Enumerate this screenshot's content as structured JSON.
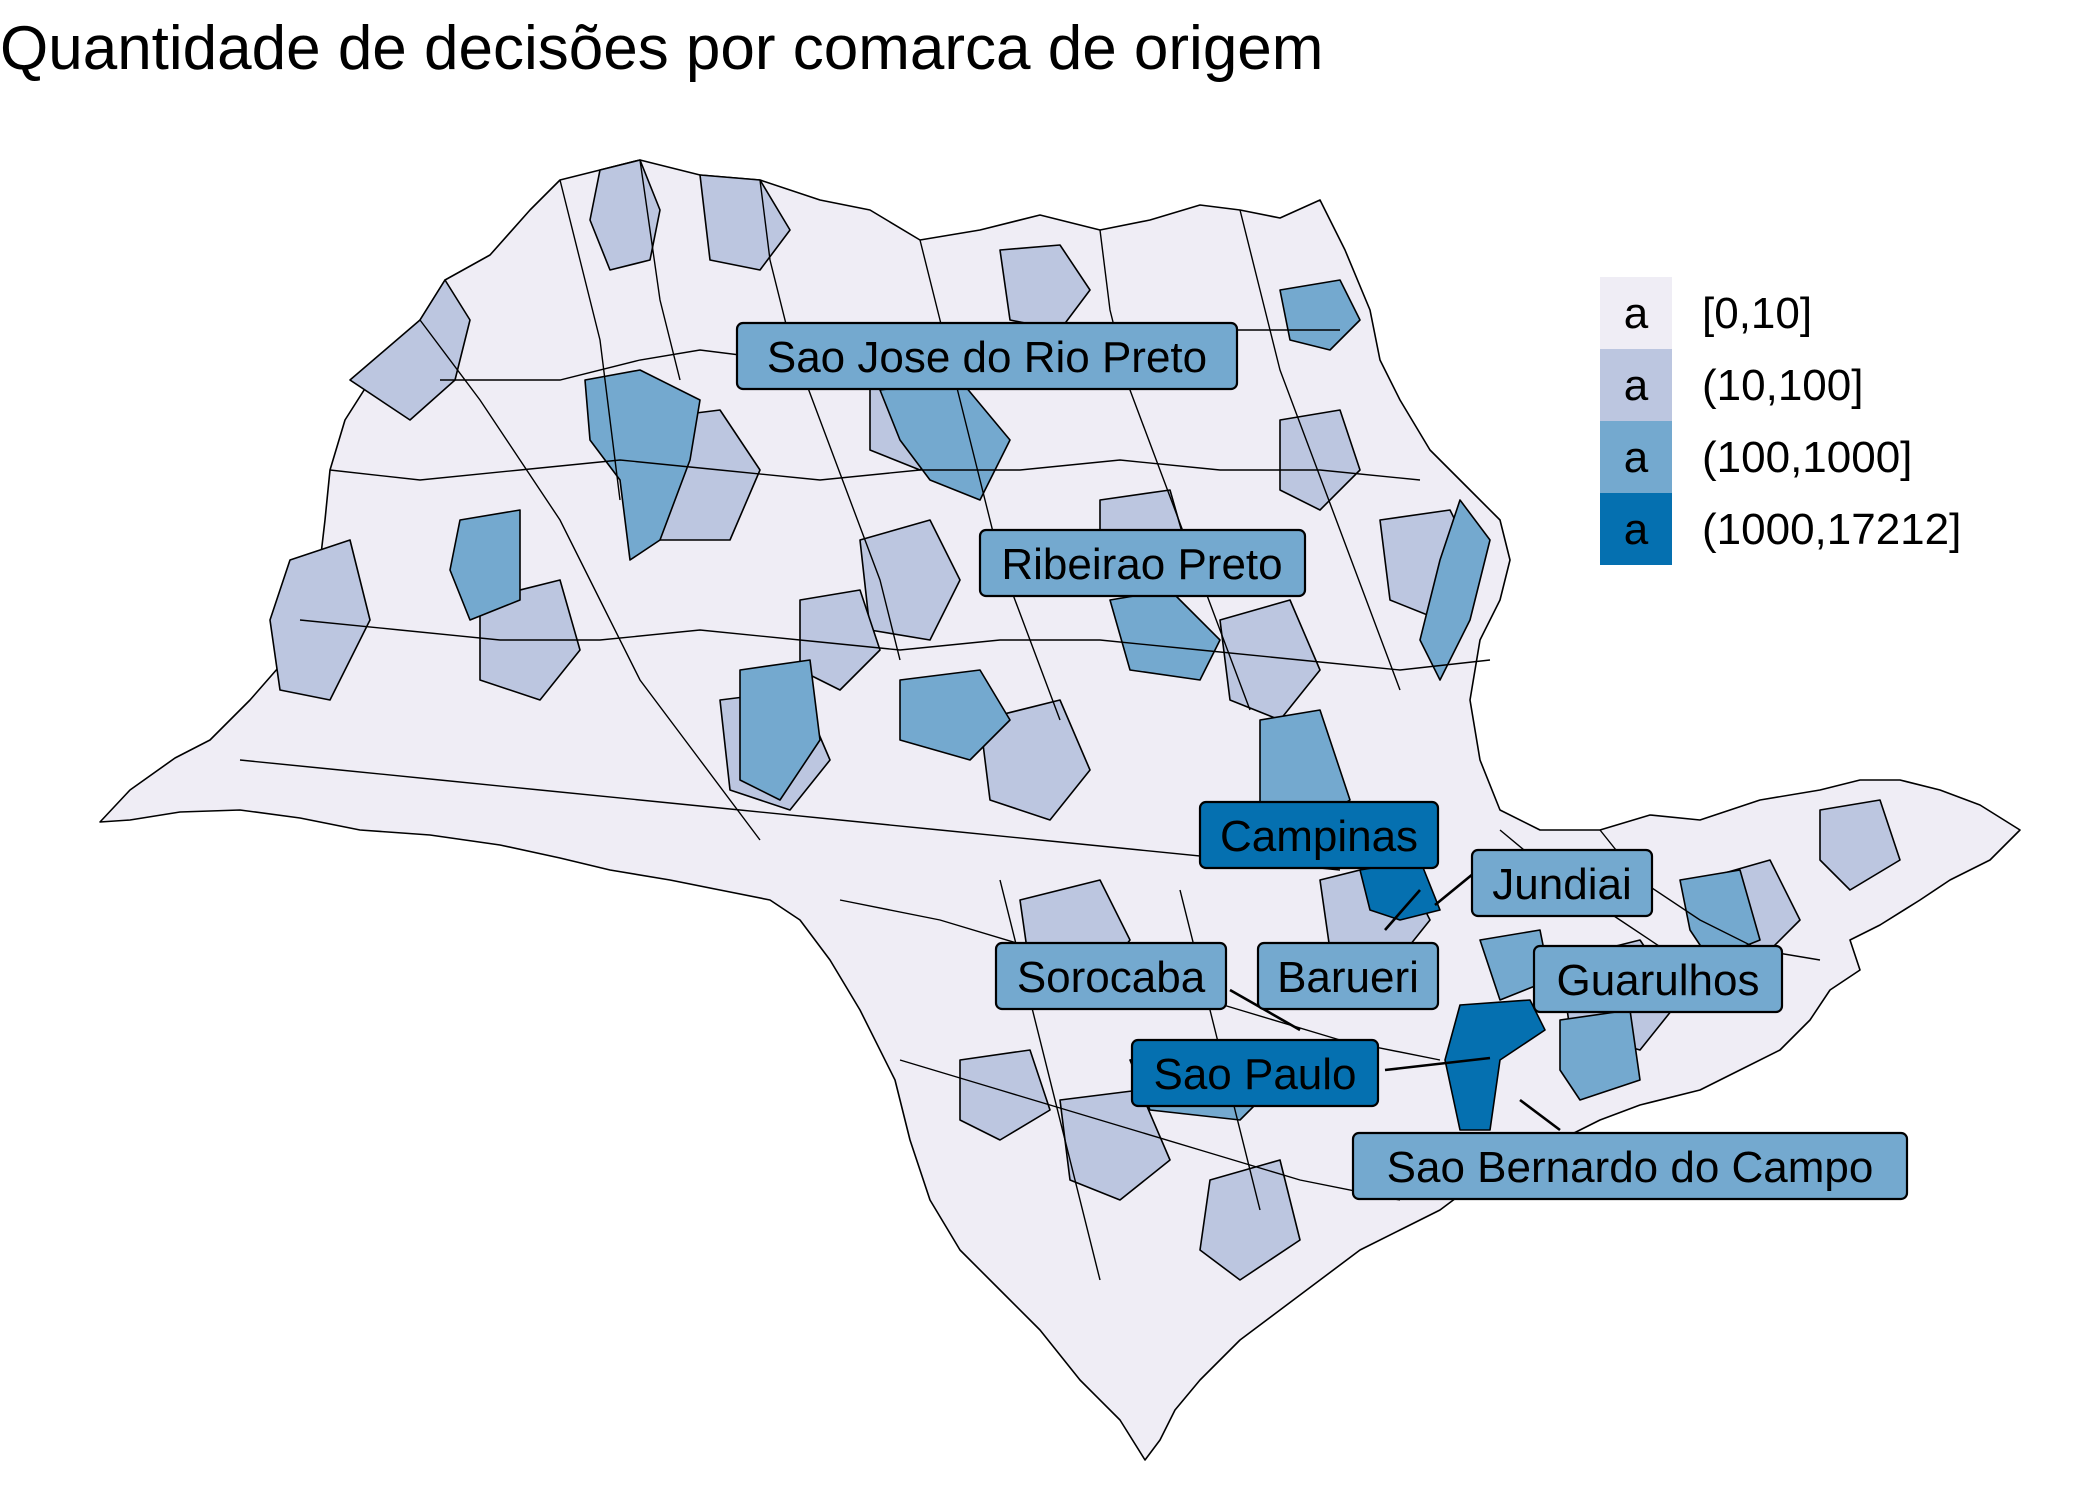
{
  "title": "Quantidade de decisões por comarca de origem",
  "legend": {
    "key_glyph": "a",
    "items": [
      {
        "label": "[0,10]",
        "color": "#EFEDF5"
      },
      {
        "label": "(10,100]",
        "color": "#BCC6E0"
      },
      {
        "label": "(100,1000]",
        "color": "#74A9CF"
      },
      {
        "label": "(1000,17212]",
        "color": "#0570B0"
      }
    ]
  },
  "labels": [
    {
      "name": "Sao Jose do Rio Preto",
      "class": 2
    },
    {
      "name": "Ribeirao Preto",
      "class": 2
    },
    {
      "name": "Campinas",
      "class": 3
    },
    {
      "name": "Jundiai",
      "class": 2
    },
    {
      "name": "Barueri",
      "class": 2
    },
    {
      "name": "Sorocaba",
      "class": 2
    },
    {
      "name": "Guarulhos",
      "class": 2
    },
    {
      "name": "Sao Paulo",
      "class": 3
    },
    {
      "name": "Sao Bernardo do Campo",
      "class": 2
    }
  ]
}
